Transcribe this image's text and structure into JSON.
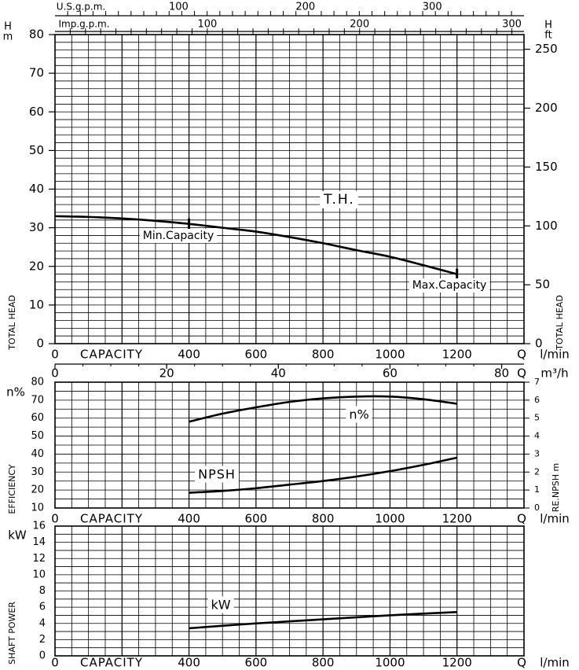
{
  "colors": {
    "line": "#000000",
    "grid": "#000000",
    "background": "#ffffff"
  },
  "top_scales": {
    "usgpm": {
      "label": "U.S.g.p.m.",
      "ticks": [
        "100",
        "200",
        "300"
      ]
    },
    "impgpm": {
      "label": "Imp.g.p.m.",
      "ticks": [
        "100",
        "200",
        "300"
      ]
    }
  },
  "chart_data": [
    {
      "type": "line",
      "panel": "total-head",
      "xlabel": "CAPACITY",
      "x_unit": "l/min",
      "x_symbol": "Q",
      "xlim": [
        0,
        1400
      ],
      "x_ticks": [
        "0",
        "400",
        "600",
        "800",
        "1000",
        "1200"
      ],
      "ylabel_left": "TOTAL HEAD",
      "ylabel_right": "TOTAL HEAD",
      "y_unit_left": [
        "H",
        "m"
      ],
      "y_unit_right": [
        "H",
        "ft"
      ],
      "ylim": [
        0,
        80
      ],
      "y_ticks_left": [
        "0",
        "10",
        "20",
        "30",
        "40",
        "50",
        "60",
        "70",
        "80"
      ],
      "y_ticks_right": [
        "0",
        "50",
        "100",
        "150",
        "200",
        "250"
      ],
      "grid": true,
      "series": [
        {
          "name": "T.H.",
          "x": [
            0,
            100,
            200,
            300,
            400,
            500,
            600,
            700,
            800,
            900,
            1000,
            1100,
            1200
          ],
          "y": [
            33,
            32.8,
            32.4,
            31.8,
            31,
            30,
            29,
            27.6,
            26,
            24.2,
            22.5,
            20.3,
            18
          ]
        }
      ],
      "markers": [
        {
          "label": "Min.Capacity",
          "x": 400,
          "y": 31
        },
        {
          "label": "Max.Capacity",
          "x": 1200,
          "y": 18
        }
      ],
      "secondary_x": {
        "unit": "m³/h",
        "symbol": "Q",
        "ticks": [
          "0",
          "20",
          "40",
          "60",
          "80"
        ]
      }
    },
    {
      "type": "line",
      "panel": "efficiency",
      "xlabel": "CAPACITY",
      "x_unit": "l/min",
      "x_symbol": "Q",
      "xlim": [
        0,
        1400
      ],
      "x_ticks": [
        "0",
        "400",
        "600",
        "800",
        "1000",
        "1200"
      ],
      "ylabel_left": "EFFICIENCY",
      "y_unit_left": "n%",
      "ylim": [
        10,
        80
      ],
      "y_ticks_left": [
        "10",
        "20",
        "30",
        "40",
        "50",
        "60",
        "70",
        "80"
      ],
      "ylabel_right": "RE.NPSH m",
      "ylim_right": [
        0,
        7
      ],
      "y_ticks_right": [
        "0",
        "1",
        "2",
        "3",
        "4",
        "5",
        "6",
        "7"
      ],
      "grid": true,
      "series": [
        {
          "name": "n%",
          "axis": "left",
          "x": [
            400,
            500,
            600,
            700,
            800,
            900,
            1000,
            1100,
            1200
          ],
          "y": [
            58,
            62.5,
            66,
            69,
            71,
            72,
            72,
            70.5,
            68
          ]
        },
        {
          "name": "NPSH",
          "axis": "right",
          "x": [
            400,
            500,
            600,
            700,
            800,
            900,
            1000,
            1100,
            1200
          ],
          "y": [
            0.85,
            0.95,
            1.1,
            1.3,
            1.5,
            1.75,
            2.05,
            2.4,
            2.8
          ]
        }
      ]
    },
    {
      "type": "line",
      "panel": "shaft-power",
      "xlabel": "CAPACITY",
      "x_unit": "l/min",
      "x_symbol": "Q",
      "xlim": [
        0,
        1400
      ],
      "x_ticks": [
        "0",
        "400",
        "600",
        "800",
        "1000",
        "1200"
      ],
      "ylabel_left": "SHAFT POWER",
      "y_unit_left": "kW",
      "ylim": [
        0,
        16
      ],
      "y_ticks_left": [
        "0",
        "2",
        "4",
        "6",
        "8",
        "10",
        "12",
        "14",
        "16"
      ],
      "grid": true,
      "series": [
        {
          "name": "kW",
          "x": [
            400,
            600,
            800,
            1000,
            1200
          ],
          "y": [
            3.4,
            4.0,
            4.5,
            5.0,
            5.4
          ]
        }
      ]
    }
  ]
}
